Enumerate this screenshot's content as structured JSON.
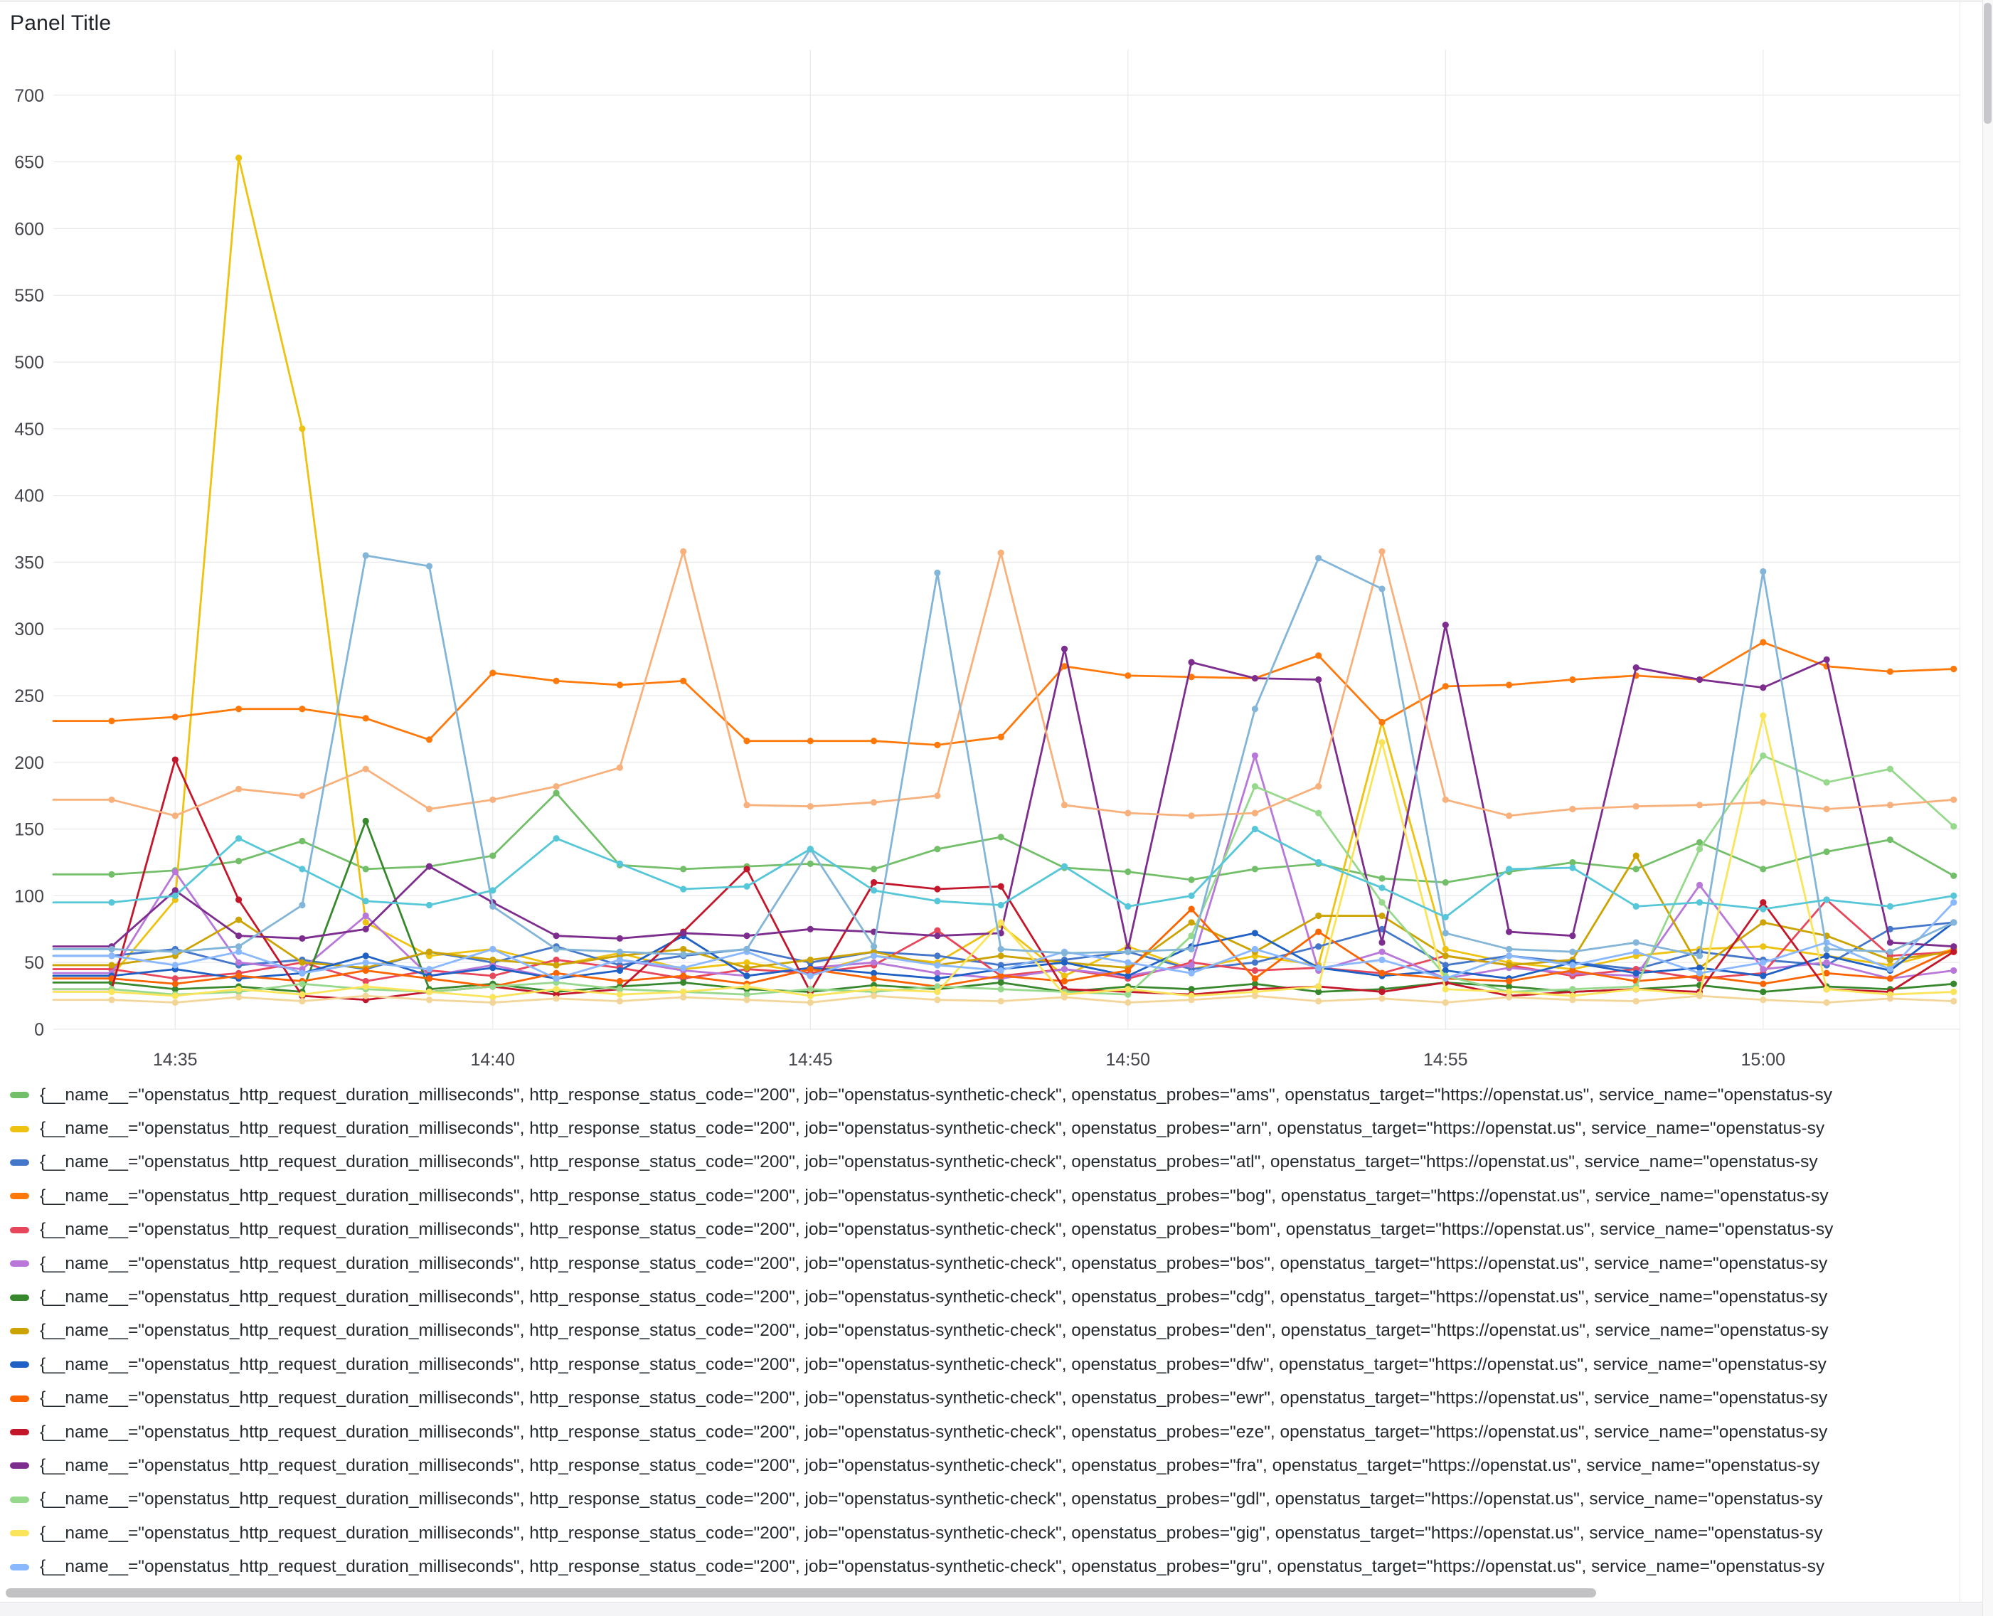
{
  "panel": {
    "title": "Panel Title"
  },
  "legend": {
    "label_prefix": "{__name__=\"openstatus_http_request_duration_milliseconds\", http_response_status_code=\"200\", job=\"openstatus-synthetic-check\", openstatus_probes=\"",
    "label_suffix": "\", openstatus_target=\"https://openstat.us\", service_name=\"openstatus-sy",
    "items": [
      {
        "probe": "ams",
        "color": "#73BF69"
      },
      {
        "probe": "arn",
        "color": "#EEC211"
      },
      {
        "probe": "atl",
        "color": "#4477C9"
      },
      {
        "probe": "bog",
        "color": "#FF780A"
      },
      {
        "probe": "bom",
        "color": "#E8465A"
      },
      {
        "probe": "bos",
        "color": "#B877D9"
      },
      {
        "probe": "cdg",
        "color": "#37872D"
      },
      {
        "probe": "den",
        "color": "#CCA300"
      },
      {
        "probe": "dfw",
        "color": "#1F60C4"
      },
      {
        "probe": "ewr",
        "color": "#FA6400"
      },
      {
        "probe": "eze",
        "color": "#C4162A"
      },
      {
        "probe": "fra",
        "color": "#7D2D8E"
      },
      {
        "probe": "gdl",
        "color": "#96D98D"
      },
      {
        "probe": "gig",
        "color": "#FAE55A"
      },
      {
        "probe": "gru",
        "color": "#8AB8FF"
      }
    ]
  },
  "chart_data": {
    "type": "line",
    "title": "Panel Title",
    "xlabel": "",
    "ylabel": "",
    "ylim": [
      0,
      700
    ],
    "y_tick_step": 50,
    "grid": true,
    "legend_position": "bottom",
    "point_markers": true,
    "x": [
      "14:34",
      "14:35",
      "14:36",
      "14:37",
      "14:38",
      "14:39",
      "14:40",
      "14:41",
      "14:42",
      "14:43",
      "14:44",
      "14:45",
      "14:46",
      "14:47",
      "14:48",
      "14:49",
      "14:50",
      "14:51",
      "14:52",
      "14:53",
      "14:54",
      "14:55",
      "14:56",
      "14:57",
      "14:58",
      "14:59",
      "15:00",
      "15:01",
      "15:02",
      "15:03"
    ],
    "x_tick_labels": [
      "14:35",
      "14:40",
      "14:45",
      "14:50",
      "14:55",
      "15:00"
    ],
    "x_tick_indices": [
      1,
      6,
      11,
      16,
      21,
      26
    ],
    "series": [
      {
        "name": "ams",
        "color": "#73BF69",
        "values": [
          116,
          119,
          126,
          141,
          120,
          122,
          130,
          177,
          123,
          120,
          122,
          124,
          120,
          135,
          144,
          121,
          118,
          112,
          120,
          124,
          113,
          110,
          118,
          125,
          120,
          140,
          120,
          133,
          142,
          115
        ]
      },
      {
        "name": "arn",
        "color": "#EEC211",
        "values": [
          40,
          97,
          653,
          450,
          80,
          55,
          60,
          48,
          57,
          45,
          50,
          42,
          55,
          50,
          78,
          40,
          62,
          45,
          55,
          48,
          230,
          60,
          50,
          45,
          55,
          60,
          62,
          55,
          48,
          60
        ]
      },
      {
        "name": "atl",
        "color": "#4477C9",
        "values": [
          55,
          60,
          48,
          52,
          45,
          58,
          50,
          62,
          48,
          55,
          60,
          50,
          58,
          55,
          48,
          52,
          58,
          45,
          50,
          62,
          75,
          48,
          55,
          50,
          45,
          58,
          52,
          48,
          75,
          80
        ]
      },
      {
        "name": "bog",
        "color": "#FF780A",
        "values": [
          231,
          234,
          240,
          240,
          233,
          217,
          267,
          261,
          258,
          261,
          216,
          216,
          216,
          213,
          219,
          272,
          265,
          264,
          263,
          280,
          230,
          257,
          258,
          262,
          265,
          262,
          290,
          272,
          268,
          270
        ]
      },
      {
        "name": "bom",
        "color": "#E8465A",
        "values": [
          45,
          38,
          42,
          50,
          36,
          44,
          40,
          52,
          46,
          38,
          45,
          42,
          48,
          74,
          40,
          45,
          38,
          50,
          44,
          46,
          42,
          55,
          48,
          40,
          45,
          38,
          42,
          97,
          55,
          58
        ]
      },
      {
        "name": "bos",
        "color": "#B877D9",
        "values": [
          42,
          118,
          50,
          45,
          85,
          40,
          48,
          38,
          52,
          44,
          40,
          46,
          50,
          42,
          38,
          45,
          40,
          48,
          205,
          44,
          58,
          38,
          46,
          42,
          40,
          108,
          45,
          50,
          38,
          44
        ]
      },
      {
        "name": "cdg",
        "color": "#37872D",
        "values": [
          35,
          30,
          32,
          28,
          156,
          30,
          34,
          28,
          32,
          35,
          30,
          28,
          33,
          30,
          35,
          28,
          32,
          30,
          34,
          28,
          30,
          35,
          32,
          28,
          30,
          33,
          28,
          32,
          30,
          34
        ]
      },
      {
        "name": "den",
        "color": "#CCA300",
        "values": [
          48,
          55,
          82,
          50,
          46,
          58,
          52,
          48,
          55,
          60,
          46,
          52,
          58,
          48,
          55,
          50,
          46,
          80,
          58,
          85,
          85,
          55,
          48,
          52,
          130,
          46,
          80,
          70,
          52,
          58
        ]
      },
      {
        "name": "dfw",
        "color": "#1F60C4",
        "values": [
          40,
          45,
          38,
          42,
          55,
          40,
          46,
          38,
          44,
          70,
          40,
          46,
          42,
          38,
          45,
          50,
          40,
          62,
          72,
          46,
          40,
          44,
          38,
          50,
          42,
          46,
          40,
          55,
          44,
          80
        ]
      },
      {
        "name": "ewr",
        "color": "#FA6400",
        "values": [
          38,
          34,
          40,
          36,
          44,
          38,
          32,
          42,
          36,
          40,
          34,
          45,
          38,
          32,
          40,
          36,
          44,
          90,
          38,
          73,
          42,
          38,
          36,
          44,
          36,
          40,
          34,
          42,
          38,
          60
        ]
      },
      {
        "name": "eze",
        "color": "#C4162A",
        "values": [
          30,
          202,
          97,
          25,
          22,
          28,
          32,
          26,
          30,
          73,
          120,
          28,
          110,
          105,
          107,
          30,
          28,
          26,
          30,
          32,
          28,
          35,
          25,
          28,
          30,
          28,
          95,
          30,
          28,
          58
        ]
      },
      {
        "name": "fra",
        "color": "#7D2D8E",
        "values": [
          62,
          104,
          70,
          68,
          75,
          122,
          95,
          70,
          68,
          72,
          70,
          75,
          73,
          70,
          72,
          285,
          60,
          275,
          263,
          262,
          65,
          303,
          73,
          70,
          271,
          262,
          256,
          277,
          65,
          62
        ]
      },
      {
        "name": "gdl",
        "color": "#96D98D",
        "values": [
          30,
          26,
          28,
          34,
          30,
          28,
          32,
          35,
          30,
          28,
          26,
          30,
          28,
          32,
          30,
          28,
          26,
          70,
          182,
          162,
          95,
          40,
          28,
          30,
          32,
          135,
          205,
          185,
          195,
          152
        ]
      },
      {
        "name": "gig",
        "color": "#FAE55A",
        "values": [
          28,
          25,
          30,
          26,
          32,
          28,
          24,
          30,
          26,
          28,
          32,
          25,
          30,
          28,
          80,
          26,
          30,
          25,
          28,
          32,
          215,
          30,
          28,
          25,
          30,
          26,
          235,
          30,
          26,
          28
        ]
      },
      {
        "name": "gru",
        "color": "#8AB8FF",
        "values": [
          55,
          48,
          58,
          42,
          50,
          45,
          60,
          38,
          52,
          46,
          58,
          40,
          55,
          48,
          44,
          58,
          50,
          42,
          60,
          46,
          52,
          38,
          55,
          48,
          58,
          42,
          50,
          65,
          45,
          95
        ]
      },
      {
        "name": "unlabeled-light-orange",
        "color": "#F8B17C",
        "values": [
          172,
          160,
          180,
          175,
          195,
          165,
          172,
          182,
          196,
          358,
          168,
          167,
          170,
          175,
          357,
          168,
          162,
          160,
          162,
          182,
          358,
          172,
          160,
          165,
          167,
          168,
          170,
          165,
          168,
          172
        ]
      },
      {
        "name": "unlabeled-steel-blue",
        "color": "#82B5D8",
        "values": [
          60,
          58,
          62,
          93,
          355,
          347,
          92,
          60,
          58,
          56,
          60,
          135,
          62,
          342,
          60,
          57,
          58,
          60,
          240,
          353,
          330,
          72,
          60,
          58,
          65,
          55,
          343,
          60,
          58,
          80
        ]
      },
      {
        "name": "unlabeled-cyan",
        "color": "#56C7D8",
        "values": [
          95,
          100,
          143,
          120,
          96,
          93,
          104,
          143,
          124,
          105,
          107,
          135,
          104,
          96,
          93,
          122,
          92,
          100,
          150,
          125,
          106,
          84,
          120,
          121,
          92,
          95,
          90,
          97,
          92,
          100
        ]
      },
      {
        "name": "unlabeled-sand",
        "color": "#F4D598",
        "values": [
          22,
          20,
          24,
          21,
          25,
          22,
          20,
          23,
          21,
          24,
          22,
          20,
          25,
          22,
          21,
          24,
          20,
          22,
          25,
          21,
          23,
          20,
          24,
          22,
          21,
          25,
          22,
          20,
          23,
          21
        ]
      }
    ]
  }
}
